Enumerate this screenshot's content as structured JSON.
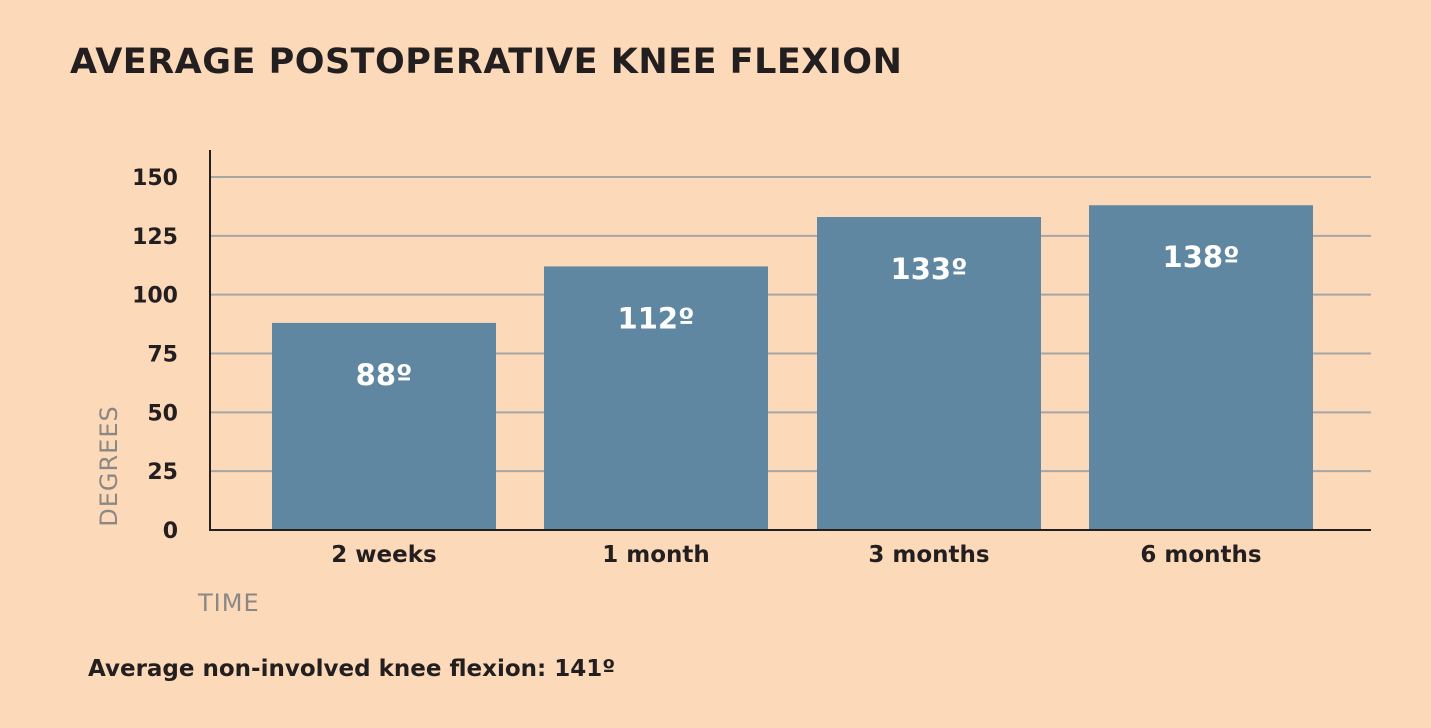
{
  "colors": {
    "background": "#fcd9b8",
    "bar": "#5f87a1",
    "gridline": "#a7a6a4",
    "axis": "#231f20",
    "bar_label": "#ffffff",
    "axis_title": "#8a8785"
  },
  "footnote": "Average non-involved knee flexion: 141º",
  "chart_data": {
    "type": "bar",
    "title": "AVERAGE POSTOPERATIVE KNEE FLEXION",
    "xlabel": "TIME",
    "ylabel": "DEGREES",
    "categories": [
      "2 weeks",
      "1 month",
      "3 months",
      "6 months"
    ],
    "values": [
      88,
      112,
      133,
      138
    ],
    "data_labels": [
      "88º",
      "112º",
      "133º",
      "138º"
    ],
    "ylim": [
      0,
      155
    ],
    "yticks": [
      0,
      25,
      50,
      75,
      100,
      125,
      150
    ],
    "grid": true,
    "legend": "none"
  }
}
